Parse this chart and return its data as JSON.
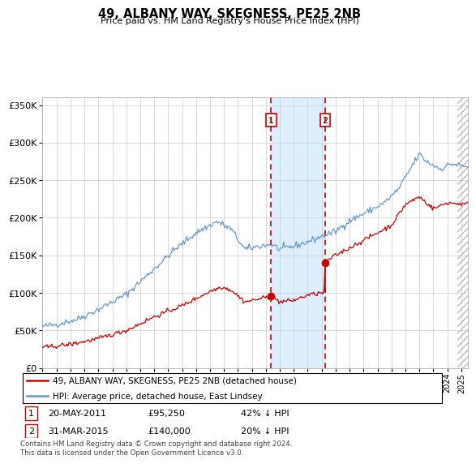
{
  "title": "49, ALBANY WAY, SKEGNESS, PE25 2NB",
  "subtitle": "Price paid vs. HM Land Registry's House Price Index (HPI)",
  "legend_line1": "49, ALBANY WAY, SKEGNESS, PE25 2NB (detached house)",
  "legend_line2": "HPI: Average price, detached house, East Lindsey",
  "transaction1_date": "20-MAY-2011",
  "transaction1_price": 95250,
  "transaction1_label": "42% ↓ HPI",
  "transaction2_date": "31-MAR-2015",
  "transaction2_price": 140000,
  "transaction2_label": "20% ↓ HPI",
  "transaction1_year": 2011.38,
  "transaction2_year": 2015.25,
  "ylim": [
    0,
    360000
  ],
  "xlim_start": 1995,
  "xlim_end": 2025.5,
  "footer": "Contains HM Land Registry data © Crown copyright and database right 2024.\nThis data is licensed under the Open Government Licence v3.0.",
  "hpi_color": "#6699cc",
  "price_color": "#cc0000",
  "bg_color": "#ffffff",
  "plot_bg": "#ffffff",
  "shade_color": "#ddeeff",
  "grid_color": "#cccccc"
}
